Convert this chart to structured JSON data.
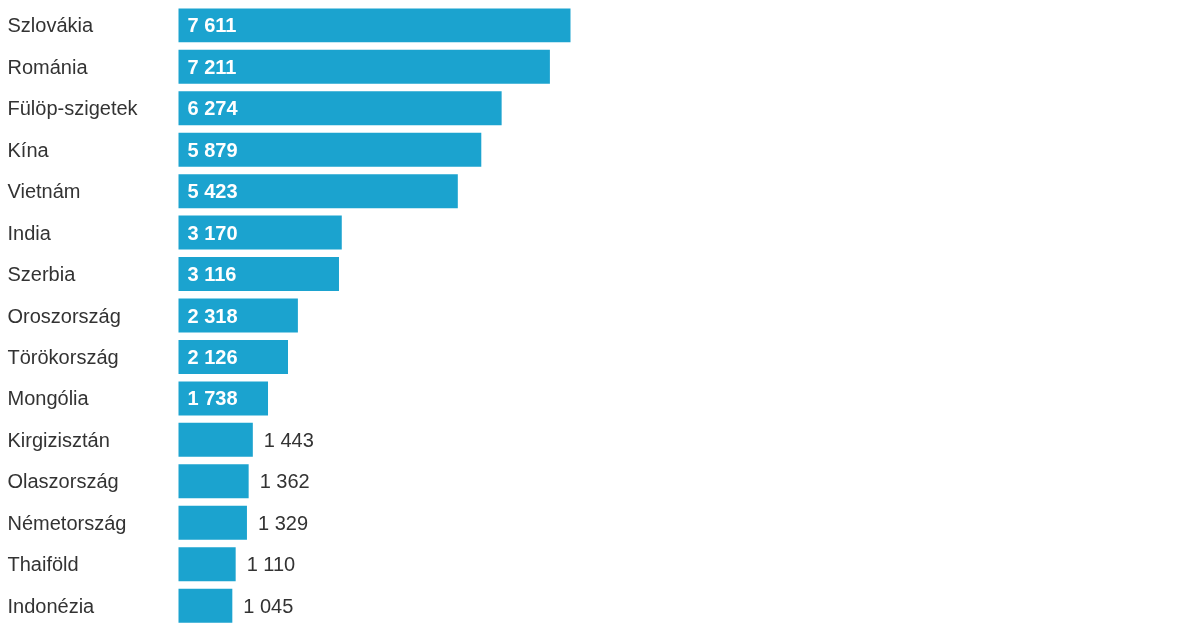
{
  "chart_data": {
    "type": "bar",
    "orientation": "horizontal",
    "categories": [
      "Szlovákia",
      "Románia",
      "Fülöp-szigetek",
      "Kína",
      "Vietnám",
      "India",
      "Szerbia",
      "Oroszország",
      "Törökország",
      "Mongólia",
      "Kirgizisztán",
      "Olaszország",
      "Németország",
      "Thaiföld",
      "Indonézia"
    ],
    "values": [
      7611,
      7211,
      6274,
      5879,
      5423,
      3170,
      3116,
      2318,
      2126,
      1738,
      1443,
      1362,
      1329,
      1110,
      1045
    ],
    "color": "#1ba3cf",
    "data_labels": true
  }
}
